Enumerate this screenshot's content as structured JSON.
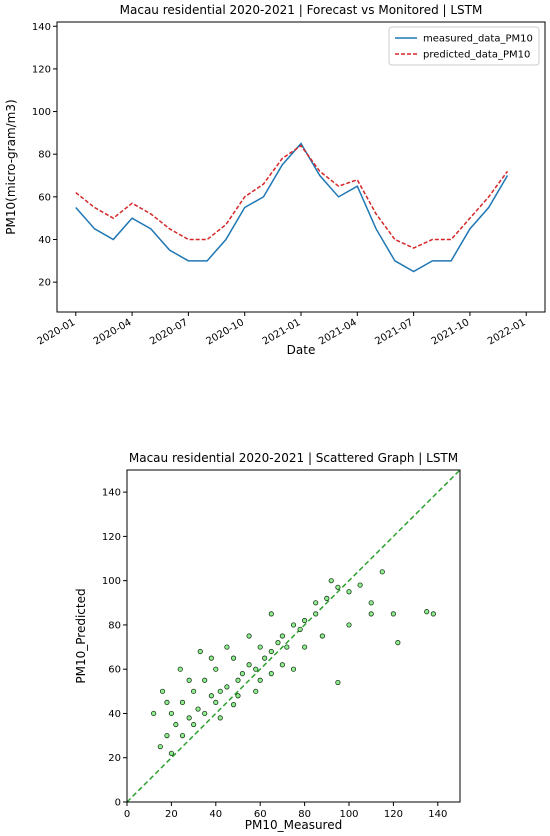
{
  "chart_data": [
    {
      "type": "line",
      "title": "Macau residential 2020-2021 | Forecast vs Monitored | LSTM",
      "x_label": "Date",
      "y_label": "PM10(micro-gram/m3)",
      "x": [
        "2020-01",
        "2020-02",
        "2020-03",
        "2020-04",
        "2020-05",
        "2020-06",
        "2020-07",
        "2020-08",
        "2020-09",
        "2020-10",
        "2020-11",
        "2020-12",
        "2021-01",
        "2021-02",
        "2021-03",
        "2021-04",
        "2021-05",
        "2021-06",
        "2021-07",
        "2021-08",
        "2021-09",
        "2021-10",
        "2021-11",
        "2021-12"
      ],
      "series": [
        {
          "name": "measured_data_PM10",
          "color": "#1f77b4",
          "linestyle": "solid",
          "values": [
            55,
            45,
            40,
            50,
            45,
            35,
            30,
            30,
            40,
            55,
            60,
            75,
            85,
            70,
            60,
            65,
            45,
            30,
            25,
            30,
            30,
            45,
            55,
            70
          ]
        },
        {
          "name": "predicted_data_PM10",
          "color": "#d62728",
          "linestyle": "dashed",
          "values": [
            62,
            55,
            50,
            57,
            52,
            45,
            40,
            40,
            47,
            60,
            66,
            78,
            84,
            72,
            65,
            68,
            52,
            40,
            36,
            40,
            40,
            50,
            60,
            72
          ]
        }
      ],
      "xlim": [
        "2019-12",
        "2022-02"
      ],
      "xticks": [
        "2020-01",
        "2020-04",
        "2020-07",
        "2020-10",
        "2021-01",
        "2021-04",
        "2021-07",
        "2021-10",
        "2022-01"
      ],
      "ylim": [
        6,
        142
      ],
      "yticks": [
        20,
        40,
        60,
        80,
        100,
        120,
        140
      ],
      "legend": "upper right"
    },
    {
      "type": "scatter",
      "title": "Macau residential 2020-2021 | Scattered Graph | LSTM",
      "x_label": "PM10_Measured",
      "y_label": "PM10_Predicted",
      "color": "#90ee90",
      "edgecolor": "#1a3a1a",
      "reference_color": "#2ca02c",
      "x": [
        15,
        18,
        20,
        22,
        25,
        28,
        30,
        32,
        35,
        38,
        40,
        42,
        45,
        48,
        50,
        52,
        55,
        58,
        60,
        62,
        65,
        68,
        70,
        72,
        75,
        78,
        80,
        85,
        90,
        95,
        100,
        105,
        110,
        115,
        120,
        122,
        135,
        138,
        95,
        18,
        20,
        25,
        28,
        30,
        35,
        38,
        40,
        45,
        50,
        55,
        60,
        65,
        70,
        80,
        85,
        100,
        12,
        16,
        24,
        33,
        42,
        48,
        58,
        88,
        92,
        110,
        75,
        65
      ],
      "values": [
        25,
        30,
        40,
        35,
        45,
        38,
        50,
        42,
        55,
        48,
        60,
        50,
        52,
        65,
        55,
        58,
        62,
        60,
        70,
        65,
        68,
        72,
        75,
        70,
        80,
        78,
        82,
        85,
        92,
        97,
        95,
        98,
        90,
        104,
        85,
        72,
        86,
        85,
        54,
        45,
        22,
        30,
        55,
        35,
        40,
        65,
        45,
        70,
        48,
        75,
        55,
        85,
        62,
        70,
        90,
        80,
        40,
        50,
        60,
        68,
        38,
        44,
        50,
        75,
        100,
        85,
        60,
        58
      ],
      "xlim": [
        0,
        150
      ],
      "xticks": [
        0,
        20,
        40,
        60,
        80,
        100,
        120,
        140
      ],
      "ylim": [
        0,
        150
      ],
      "yticks": [
        0,
        20,
        40,
        60,
        80,
        100,
        120,
        140
      ]
    }
  ]
}
